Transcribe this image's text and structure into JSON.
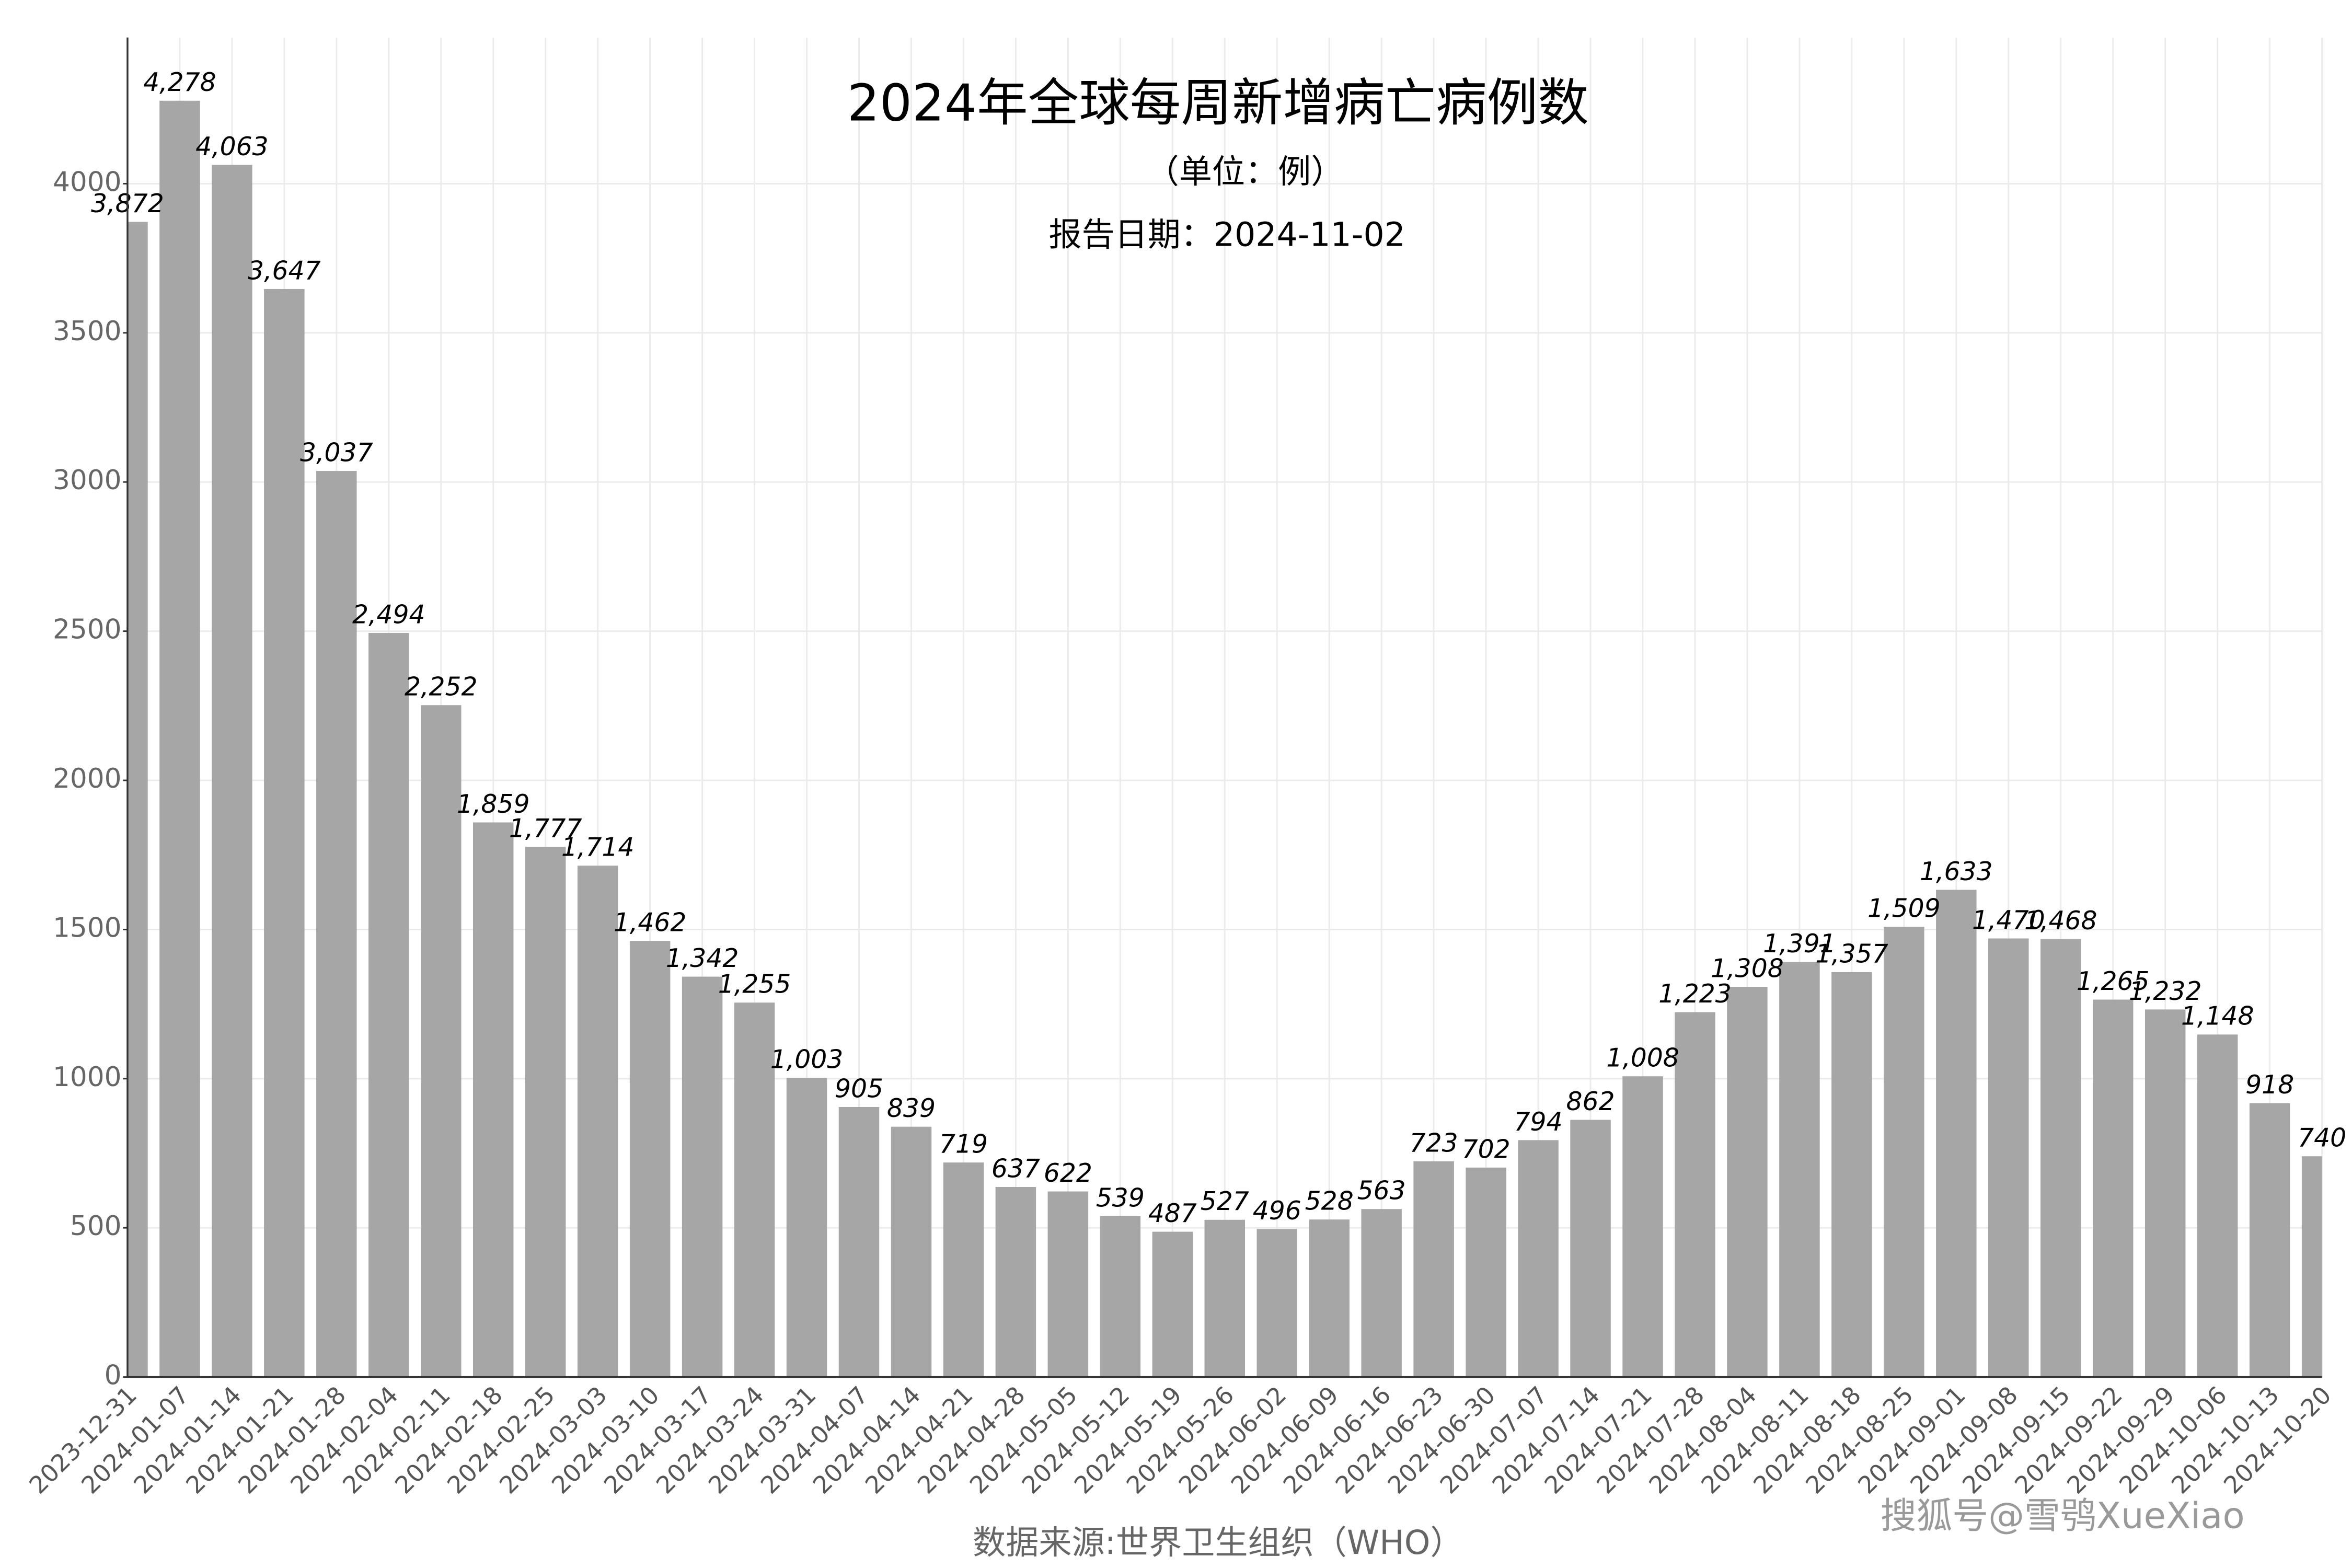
{
  "chart_data": {
    "type": "bar",
    "title": "2024年全球每周新增病亡病例数",
    "subtitle": "（单位：例）",
    "report_date": "报告日期：2024-11-02",
    "source": "数据来源:世界卫生组织（WHO）",
    "watermark": "搜狐号@雪鸮XueXiao",
    "categories": [
      "2023-12-31",
      "2024-01-07",
      "2024-01-14",
      "2024-01-21",
      "2024-01-28",
      "2024-02-04",
      "2024-02-11",
      "2024-02-18",
      "2024-02-25",
      "2024-03-03",
      "2024-03-10",
      "2024-03-17",
      "2024-03-24",
      "2024-03-31",
      "2024-04-07",
      "2024-04-14",
      "2024-04-21",
      "2024-04-28",
      "2024-05-05",
      "2024-05-12",
      "2024-05-19",
      "2024-05-26",
      "2024-06-02",
      "2024-06-09",
      "2024-06-16",
      "2024-06-23",
      "2024-06-30",
      "2024-07-07",
      "2024-07-14",
      "2024-07-21",
      "2024-07-28",
      "2024-08-04",
      "2024-08-11",
      "2024-08-18",
      "2024-08-25",
      "2024-09-01",
      "2024-09-08",
      "2024-09-15",
      "2024-09-22",
      "2024-09-29",
      "2024-10-06",
      "2024-10-13",
      "2024-10-20"
    ],
    "values": [
      3872,
      4278,
      4063,
      3647,
      3037,
      2494,
      2252,
      1859,
      1777,
      1714,
      1462,
      1342,
      1255,
      1003,
      905,
      839,
      719,
      637,
      622,
      539,
      487,
      527,
      496,
      528,
      563,
      723,
      702,
      794,
      862,
      1008,
      1223,
      1308,
      1391,
      1357,
      1509,
      1633,
      1470,
      1468,
      1265,
      1232,
      1148,
      918,
      740
    ],
    "value_labels": [
      "3,872",
      "4,278",
      "4,063",
      "3,647",
      "3,037",
      "2,494",
      "2,252",
      "1,859",
      "1,777",
      "1,714",
      "1,462",
      "1,342",
      "1,255",
      "1,003",
      "905",
      "839",
      "719",
      "637",
      "622",
      "539",
      "487",
      "527",
      "496",
      "528",
      "563",
      "723",
      "702",
      "794",
      "862",
      "1,008",
      "1,223",
      "1,308",
      "1,391",
      "1,357",
      "1,509",
      "1,633",
      "1,470",
      "1,468",
      "1,265",
      "1,232",
      "1,148",
      "918",
      "740"
    ],
    "color": "#a6a6a6",
    "ylim": [
      0,
      4490
    ],
    "yticks": [
      0,
      500,
      1000,
      1500,
      2000,
      2500,
      3000,
      3500,
      4000
    ],
    "grid": true
  }
}
